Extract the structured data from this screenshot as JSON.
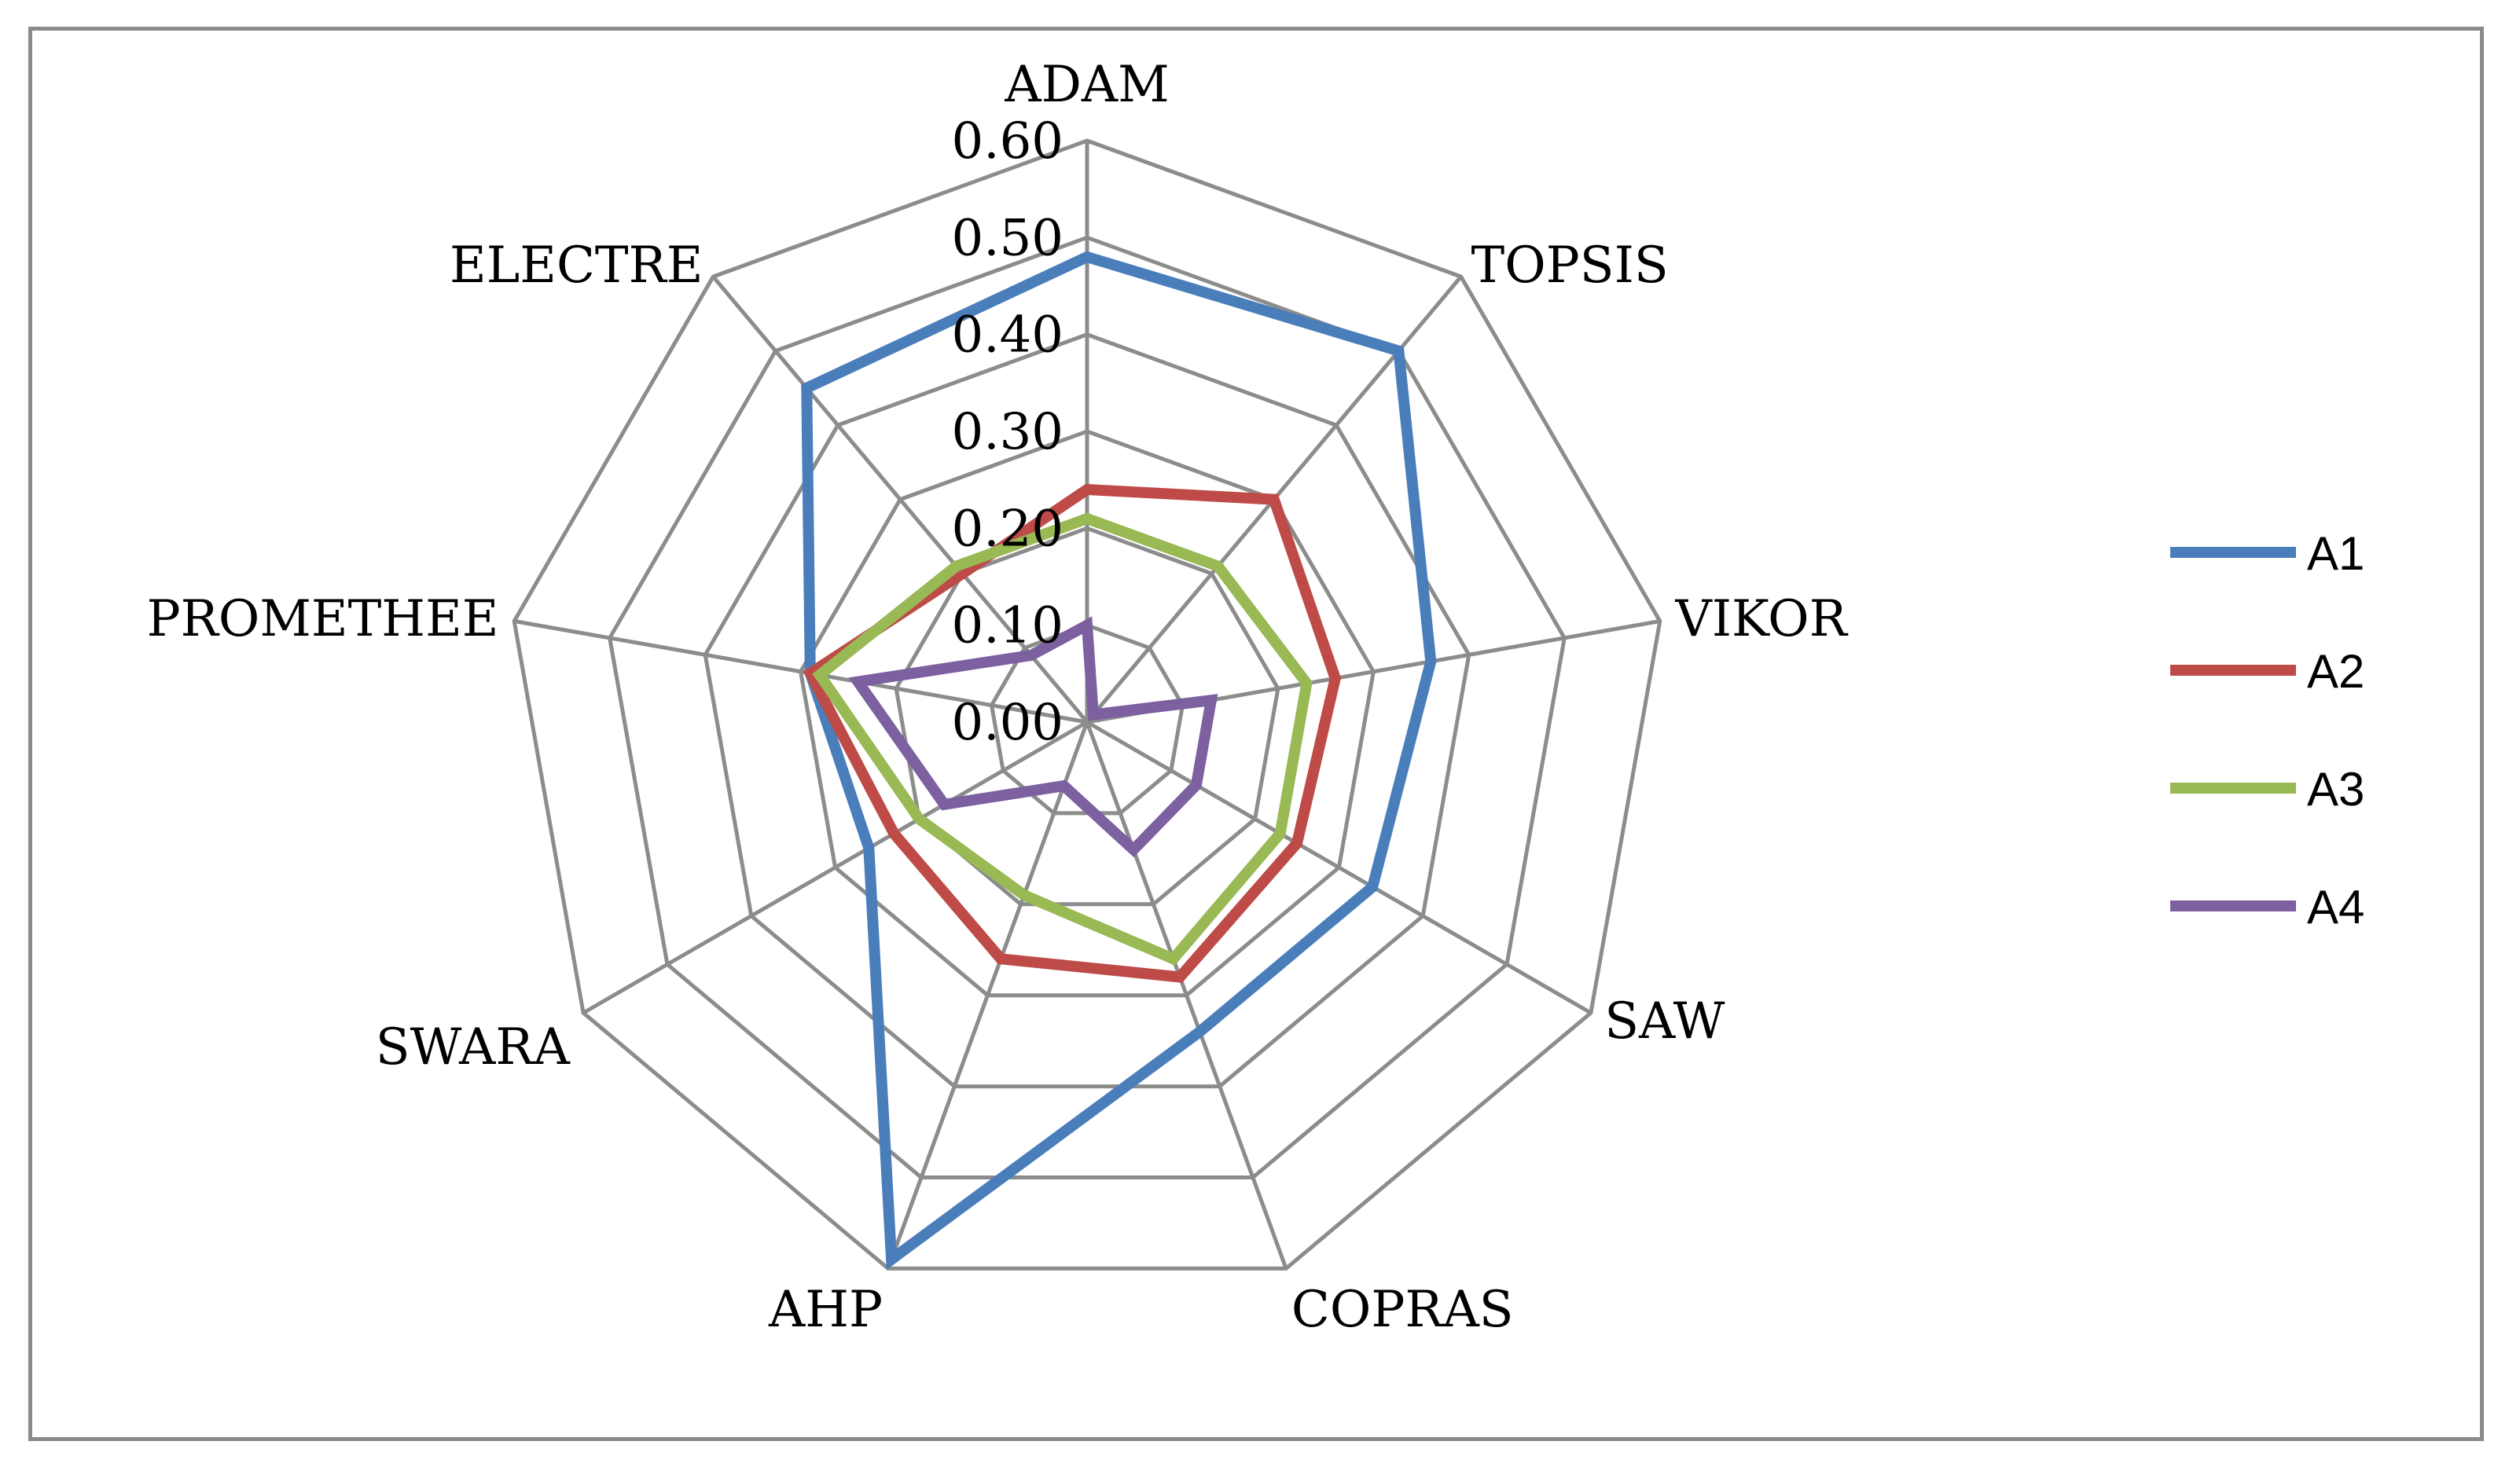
{
  "chart_data": {
    "type": "radar",
    "title": "",
    "axes": [
      "ADAM",
      "TOPSIS",
      "VIKOR",
      "SAW",
      "COPRAS",
      "AHP",
      "SWARA",
      "PROMETHEE",
      "ELECTRE"
    ],
    "tick_labels": [
      "0.00",
      "0.10",
      "0.20",
      "0.30",
      "0.40",
      "0.50",
      "0.60"
    ],
    "rlim": [
      0,
      0.6
    ],
    "tick_step": 0.1,
    "series": [
      {
        "name": "A1",
        "color": "#4a7ebb",
        "values": [
          0.48,
          0.5,
          0.36,
          0.34,
          0.34,
          0.59,
          0.26,
          0.29,
          0.45
        ]
      },
      {
        "name": "A2",
        "color": "#be4b48",
        "values": [
          0.24,
          0.3,
          0.26,
          0.25,
          0.28,
          0.26,
          0.23,
          0.29,
          0.2
        ]
      },
      {
        "name": "A3",
        "color": "#98b954",
        "values": [
          0.21,
          0.21,
          0.23,
          0.23,
          0.26,
          0.19,
          0.2,
          0.28,
          0.21
        ]
      },
      {
        "name": "A4",
        "color": "#7d60a0",
        "values": [
          0.1,
          0.01,
          0.13,
          0.13,
          0.14,
          0.07,
          0.17,
          0.24,
          0.09
        ]
      }
    ],
    "legend_position": "right"
  }
}
